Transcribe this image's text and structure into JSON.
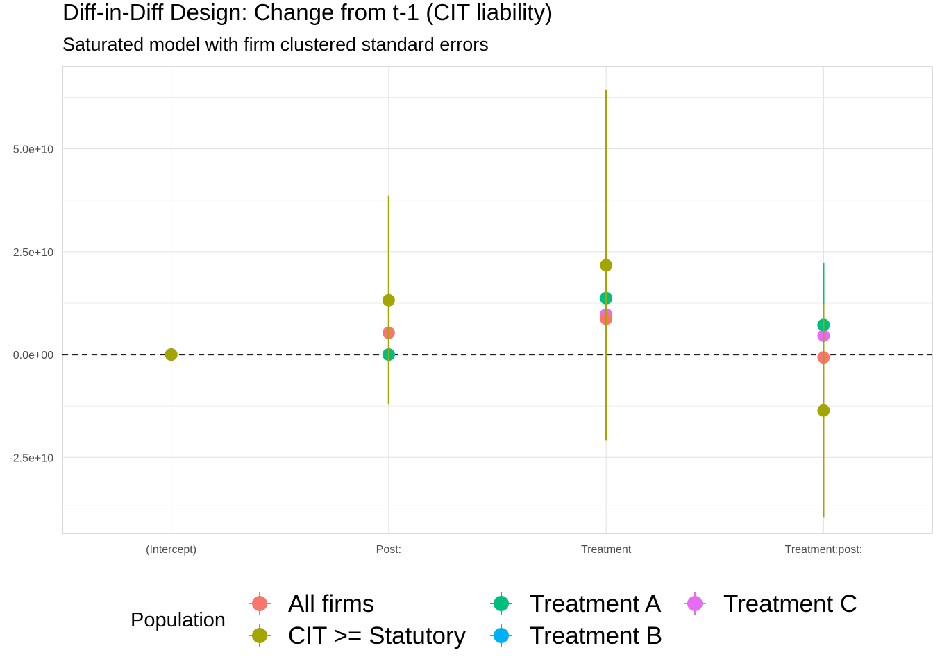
{
  "chart_data": {
    "type": "scatter",
    "title": "Diff-in-Diff Design: Change from t-1 (CIT liability)",
    "subtitle": "Saturated model with firm clustered standard errors",
    "xlabel": "",
    "ylabel": "",
    "categories": [
      "(Intercept)",
      "Post:",
      "Treatment",
      "Treatment:post:"
    ],
    "ylim": [
      -43500000000.0,
      70000000000.0
    ],
    "y_ticks": [
      -25000000000.0,
      0,
      25000000000.0,
      50000000000.0
    ],
    "y_tick_labels": [
      "-2.5e+10",
      "0.0e+00",
      "2.5e+10",
      "5.0e+10"
    ],
    "reference_line": 0,
    "grid": true,
    "legend": {
      "title": "Population",
      "position": "bottom",
      "entries": [
        "All firms",
        "CIT >= Statutory",
        "Treatment A",
        "Treatment B",
        "Treatment C"
      ]
    },
    "series": [
      {
        "name": "All firms",
        "color": "#F8766D",
        "estimate": [
          0,
          5300000000.0,
          8700000000.0,
          -700000000.0
        ],
        "lower": [
          0,
          5300000000.0,
          8700000000.0,
          -700000000.0
        ],
        "upper": [
          0,
          5300000000.0,
          8700000000.0,
          -700000000.0
        ]
      },
      {
        "name": "CIT >= Statutory",
        "color": "#A3A500",
        "estimate": [
          0,
          13200000000.0,
          21700000000.0,
          -13600000000.0
        ],
        "lower": [
          0,
          -12200000000.0,
          -20800000000.0,
          -39500000000.0
        ],
        "upper": [
          0,
          38700000000.0,
          64300000000.0,
          12300000000.0
        ]
      },
      {
        "name": "Treatment A",
        "color": "#00BF7D",
        "estimate": [
          0,
          0,
          13700000000.0,
          7200000000.0
        ],
        "lower": [
          0,
          0,
          13700000000.0,
          7200000000.0
        ],
        "upper": [
          0,
          0,
          13700000000.0,
          22300000000.0
        ]
      },
      {
        "name": "Treatment B",
        "color": "#00B0F6",
        "estimate": [
          0,
          0,
          13700000000.0,
          7200000000.0
        ],
        "lower": [
          0,
          0,
          13700000000.0,
          7200000000.0
        ],
        "upper": [
          0,
          0,
          13700000000.0,
          7200000000.0
        ]
      },
      {
        "name": "Treatment C",
        "color": "#E76BF3",
        "estimate": [
          0,
          0,
          9700000000.0,
          4600000000.0
        ],
        "lower": [
          0,
          0,
          9700000000.0,
          4600000000.0
        ],
        "upper": [
          0,
          0,
          9700000000.0,
          13800000000.0
        ]
      }
    ],
    "draw_order": [
      3,
      4,
      2,
      0,
      1
    ]
  }
}
